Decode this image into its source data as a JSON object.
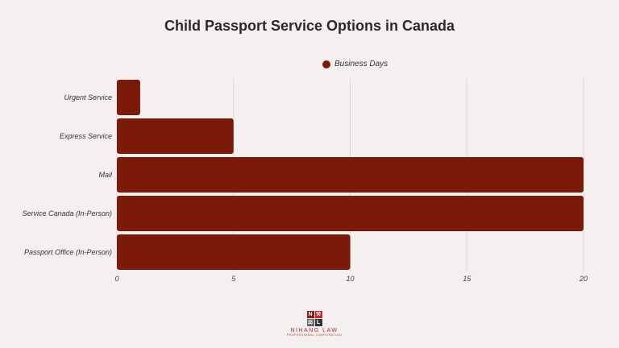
{
  "chart_data": {
    "type": "bar",
    "orientation": "horizontal",
    "title": "Child Passport Service Options in Canada",
    "categories": [
      "Urgent Service",
      "Express Service",
      "Mail",
      "Service Canada (In-Person)",
      "Passport Office (In-Person)"
    ],
    "series": [
      {
        "name": "Business Days",
        "values": [
          1,
          5,
          20,
          20,
          10
        ],
        "color": "#7b1a08"
      }
    ],
    "xlim": [
      0,
      20
    ],
    "xticks": [
      "0",
      "5",
      "10",
      "15",
      "20"
    ],
    "grid": true,
    "legend": "top"
  },
  "logo": {
    "letters": [
      "N",
      "",
      "",
      "L"
    ],
    "name": "NIHANG LAW",
    "subtitle": "PROFESSIONAL CORPORATION"
  }
}
